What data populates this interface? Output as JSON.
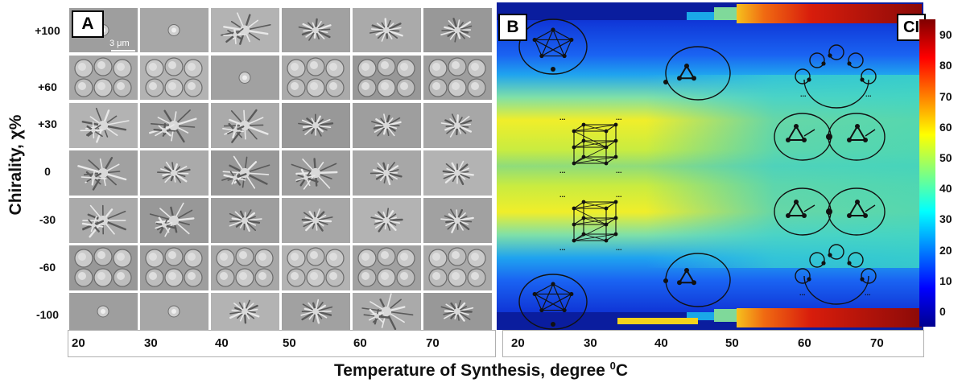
{
  "figure": {
    "ylabel": "Chirality, χ%",
    "xlabel_main": "Temperature of Synthesis, degree ",
    "xlabel_sup": "0",
    "xlabel_unit": "C"
  },
  "panelA": {
    "label": "A",
    "scale_bar": "3 μm",
    "rows": [
      "+100",
      "+60",
      "+30",
      "0",
      "-30",
      "-60",
      "-100"
    ],
    "cols": [
      "20",
      "30",
      "40",
      "50",
      "60",
      "70"
    ]
  },
  "panelB": {
    "label": "B",
    "colorbar_label": "CI",
    "cols": [
      "20",
      "30",
      "40",
      "50",
      "60",
      "70"
    ],
    "colorbar_ticks": [
      "90",
      "80",
      "70",
      "60",
      "50",
      "40",
      "30",
      "20",
      "10",
      "0"
    ],
    "colormap": "jet",
    "dots_label": "..."
  },
  "chart_data": {
    "type": "heatmap",
    "xlabel": "Temperature of Synthesis, degree 0C",
    "ylabel": "Chirality, χ%",
    "x": [
      20,
      30,
      40,
      50,
      60,
      70
    ],
    "y": [
      100,
      60,
      30,
      0,
      -30,
      -60,
      -100
    ],
    "zlabel": "CI",
    "zlim": [
      0,
      90
    ],
    "values": [
      [
        14,
        12,
        10,
        8,
        28,
        85
      ],
      [
        12,
        10,
        8,
        8,
        8,
        8
      ],
      [
        42,
        52,
        46,
        38,
        36,
        35
      ],
      [
        28,
        32,
        30,
        28,
        27,
        26
      ],
      [
        42,
        52,
        46,
        38,
        36,
        35
      ],
      [
        12,
        10,
        8,
        8,
        8,
        8
      ],
      [
        14,
        12,
        10,
        8,
        28,
        85
      ]
    ]
  }
}
